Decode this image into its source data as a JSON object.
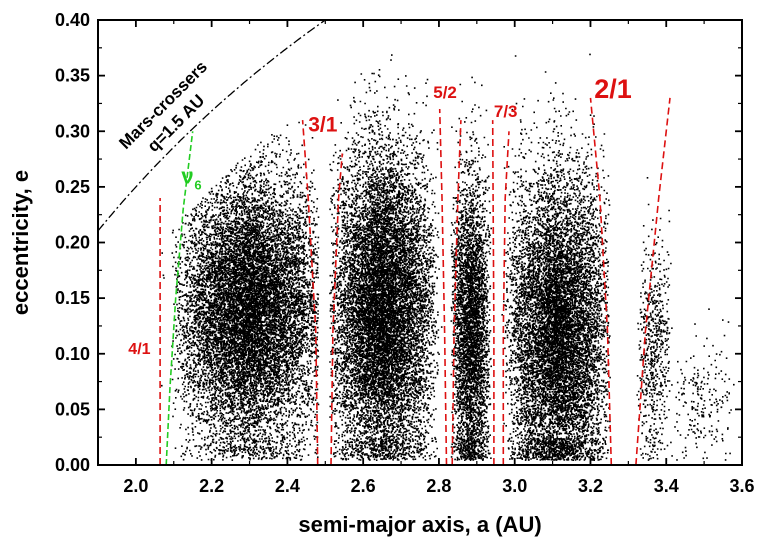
{
  "chart_data": {
    "type": "scatter",
    "xlabel": "semi-major axis, a (AU)",
    "ylabel": "eccentricity, e",
    "xlim": [
      1.9,
      3.6
    ],
    "ylim": [
      0.0,
      0.4
    ],
    "x_ticks": [
      "2.0",
      "2.2",
      "2.4",
      "2.6",
      "2.8",
      "3.0",
      "3.2",
      "3.4",
      "3.6"
    ],
    "y_ticks": [
      "0.00",
      "0.05",
      "0.10",
      "0.15",
      "0.20",
      "0.25",
      "0.30",
      "0.35",
      "0.40"
    ],
    "grid": false,
    "point_color": "#000000",
    "clusters": [
      {
        "a_range": [
          2.06,
          2.48
        ],
        "peak_a": 2.33,
        "e_center": 0.14,
        "e_spread": 0.06,
        "weight": 0.3
      },
      {
        "a_range": [
          2.51,
          2.81
        ],
        "peak_a": 2.64,
        "e_center": 0.14,
        "e_spread": 0.07,
        "weight": 0.28
      },
      {
        "a_range": [
          2.83,
          2.94
        ],
        "peak_a": 2.88,
        "e_center": 0.12,
        "e_spread": 0.07,
        "weight": 0.1
      },
      {
        "a_range": [
          2.96,
          3.25
        ],
        "peak_a": 3.12,
        "e_center": 0.12,
        "e_spread": 0.07,
        "weight": 0.24
      },
      {
        "a_range": [
          3.32,
          3.42
        ],
        "peak_a": 3.36,
        "e_center": 0.1,
        "e_spread": 0.05,
        "weight": 0.015
      },
      {
        "a_range": [
          3.42,
          3.6
        ],
        "peak_a": 3.47,
        "e_center": 0.06,
        "e_spread": 0.03,
        "weight": 0.005
      }
    ],
    "mars_crossers": {
      "label_line1": "Mars-crossers",
      "label_line2": "q=1.5 AU",
      "q": 1.5,
      "color": "#000000"
    },
    "nu6": {
      "label": "ν",
      "subscript": "6",
      "color": "#22cc22",
      "curve": [
        [
          2.08,
          0.0
        ],
        [
          2.09,
          0.07
        ],
        [
          2.105,
          0.15
        ],
        [
          2.125,
          0.23
        ],
        [
          2.15,
          0.3
        ]
      ]
    },
    "resonances": [
      {
        "label": "4/1",
        "color": "#dd1111",
        "lines": [
          [
            [
              2.064,
              0.0
            ],
            [
              2.064,
              0.24
            ]
          ]
        ],
        "label_pos": [
          1.98,
          0.1
        ]
      },
      {
        "label": "3/1",
        "color": "#dd1111",
        "lines": [
          [
            [
              2.48,
              0.0
            ],
            [
              2.475,
              0.12
            ],
            [
              2.455,
              0.24
            ],
            [
              2.44,
              0.31
            ]
          ],
          [
            [
              2.515,
              0.0
            ],
            [
              2.52,
              0.12
            ],
            [
              2.535,
              0.24
            ],
            [
              2.545,
              0.28
            ]
          ]
        ],
        "label_pos": [
          2.455,
          0.3
        ]
      },
      {
        "label": "5/2",
        "color": "#dd1111",
        "lines": [
          [
            [
              2.82,
              0.0
            ],
            [
              2.815,
              0.12
            ],
            [
              2.808,
              0.24
            ],
            [
              2.802,
              0.32
            ]
          ],
          [
            [
              2.835,
              0.0
            ],
            [
              2.84,
              0.12
            ],
            [
              2.85,
              0.24
            ],
            [
              2.858,
              0.31
            ]
          ]
        ],
        "label_pos": [
          2.785,
          0.33
        ]
      },
      {
        "label": "7/3",
        "color": "#dd1111",
        "lines": [
          [
            [
              2.945,
              0.0
            ],
            [
              2.945,
              0.12
            ],
            [
              2.943,
              0.24
            ],
            [
              2.942,
              0.31
            ]
          ],
          [
            [
              2.97,
              0.0
            ],
            [
              2.97,
              0.12
            ],
            [
              2.975,
              0.24
            ],
            [
              2.985,
              0.3
            ]
          ]
        ],
        "label_pos": [
          2.945,
          0.313
        ]
      },
      {
        "label": "2/1",
        "color": "#dd1111",
        "lines": [
          [
            [
              3.255,
              0.0
            ],
            [
              3.245,
              0.12
            ],
            [
              3.225,
              0.24
            ],
            [
              3.2,
              0.33
            ]
          ],
          [
            [
              3.32,
              0.0
            ],
            [
              3.345,
              0.12
            ],
            [
              3.38,
              0.24
            ],
            [
              3.41,
              0.33
            ]
          ]
        ],
        "label_pos": [
          3.21,
          0.33
        ]
      }
    ]
  }
}
